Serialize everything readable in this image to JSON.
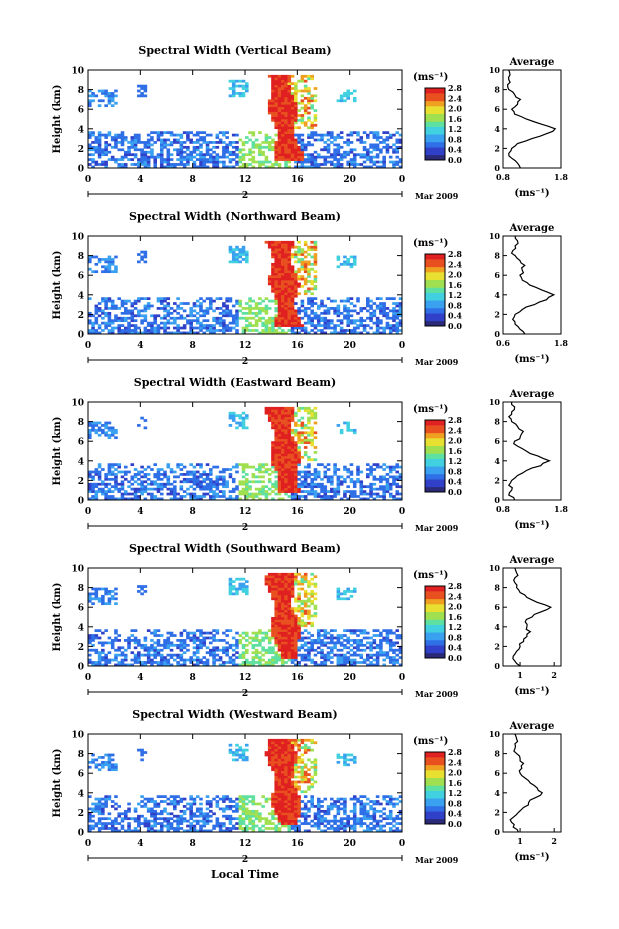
{
  "chart_data": [
    {
      "type": "heatmap",
      "title": "Spectral Width (Vertical Beam)",
      "ylabel": "Height (km)",
      "ylim": [
        0,
        10
      ],
      "yticks": [
        "0",
        "2",
        "4",
        "6",
        "8",
        "10"
      ],
      "xlim": [
        0,
        24
      ],
      "xticks": [
        "0",
        "4",
        "8",
        "12",
        "16",
        "20",
        "0"
      ],
      "date_mid_label": "2",
      "date_right_label": "Mar 2009",
      "colorbar": {
        "unit": "(ms⁻¹)",
        "ticks": [
          "0.0",
          "0.4",
          "0.8",
          "1.2",
          "1.6",
          "2.0",
          "2.4",
          "2.8"
        ],
        "range": [
          0,
          2.8
        ]
      },
      "avg": {
        "title": "Average",
        "xlabel": "(ms⁻¹)",
        "xlim": [
          0.8,
          1.8
        ],
        "xticks": [
          "0.8",
          "1.8"
        ],
        "x": [
          1.1,
          1.05,
          0.95,
          0.9,
          0.95,
          1.05,
          1.3,
          1.55,
          1.7,
          1.45,
          1.2,
          1.0,
          0.95,
          1.05,
          1.1,
          1.0,
          0.9,
          0.88,
          0.9,
          0.92,
          0.9
        ],
        "y": [
          0,
          0.5,
          1,
          1.5,
          2,
          2.5,
          3,
          3.5,
          4,
          4.5,
          5,
          5.5,
          6,
          6.5,
          7,
          7.5,
          8,
          8.5,
          9,
          9.5,
          10
        ]
      }
    },
    {
      "type": "heatmap",
      "title": "Spectral Width (Northward Beam)",
      "ylabel": "Height (km)",
      "ylim": [
        0,
        10
      ],
      "yticks": [
        "0",
        "2",
        "4",
        "6",
        "8",
        "10"
      ],
      "xlim": [
        0,
        24
      ],
      "xticks": [
        "0",
        "4",
        "8",
        "12",
        "16",
        "20",
        "0"
      ],
      "date_mid_label": "2",
      "date_right_label": "Mar 2009",
      "colorbar": {
        "unit": "(ms⁻¹)",
        "ticks": [
          "0.0",
          "0.4",
          "0.8",
          "1.2",
          "1.6",
          "2.0",
          "2.4",
          "2.8"
        ],
        "range": [
          0,
          2.8
        ]
      },
      "avg": {
        "title": "Average",
        "xlabel": "(ms⁻¹)",
        "xlim": [
          0.6,
          1.8
        ],
        "xticks": [
          "0.6",
          "1.8"
        ],
        "x": [
          1.05,
          0.95,
          0.85,
          0.8,
          0.85,
          1.0,
          1.25,
          1.5,
          1.65,
          1.4,
          1.15,
          1.0,
          0.95,
          1.0,
          1.05,
          0.95,
          0.85,
          0.8,
          0.85,
          0.9,
          0.85
        ],
        "y": [
          0,
          0.5,
          1,
          1.5,
          2,
          2.5,
          3,
          3.5,
          4,
          4.5,
          5,
          5.5,
          6,
          6.5,
          7,
          7.5,
          8,
          8.5,
          9,
          9.5,
          10
        ]
      }
    },
    {
      "type": "heatmap",
      "title": "Spectral Width (Eastward Beam)",
      "ylabel": "Height (km)",
      "ylim": [
        0,
        10
      ],
      "yticks": [
        "0",
        "2",
        "4",
        "6",
        "8",
        "10"
      ],
      "xlim": [
        0,
        24
      ],
      "xticks": [
        "0",
        "4",
        "8",
        "12",
        "16",
        "20",
        "0"
      ],
      "date_mid_label": "2",
      "date_right_label": "Mar 2009",
      "colorbar": {
        "unit": "(ms⁻¹)",
        "ticks": [
          "0.0",
          "0.4",
          "0.8",
          "1.2",
          "1.6",
          "2.0",
          "2.4",
          "2.8"
        ],
        "range": [
          0,
          2.8
        ]
      },
      "avg": {
        "title": "Average",
        "xlabel": "(ms⁻¹)",
        "xlim": [
          0.8,
          1.8
        ],
        "xticks": [
          "0.8",
          "1.8"
        ],
        "x": [
          1.0,
          0.9,
          0.95,
          0.9,
          0.95,
          1.05,
          1.2,
          1.45,
          1.6,
          1.4,
          1.2,
          1.05,
          1.0,
          1.1,
          1.15,
          1.05,
          0.95,
          0.9,
          0.95,
          1.0,
          0.95
        ],
        "y": [
          0,
          0.5,
          1,
          1.5,
          2,
          2.5,
          3,
          3.5,
          4,
          4.5,
          5,
          5.5,
          6,
          6.5,
          7,
          7.5,
          8,
          8.5,
          9,
          9.5,
          10
        ]
      }
    },
    {
      "type": "heatmap",
      "title": "Spectral Width (Southward Beam)",
      "ylabel": "Height (km)",
      "ylim": [
        0,
        10
      ],
      "yticks": [
        "0",
        "2",
        "4",
        "6",
        "8",
        "10"
      ],
      "xlim": [
        0,
        24
      ],
      "xticks": [
        "0",
        "4",
        "8",
        "12",
        "16",
        "20",
        "0"
      ],
      "date_mid_label": "2",
      "date_right_label": "Mar 2009",
      "colorbar": {
        "unit": "(ms⁻¹)",
        "ticks": [
          "0.0",
          "0.4",
          "0.8",
          "1.2",
          "1.6",
          "2.0",
          "2.4",
          "2.8"
        ],
        "range": [
          0,
          2.8
        ]
      },
      "avg": {
        "title": "Average",
        "xlabel": "(ms⁻¹)",
        "xlim": [
          0.5,
          2.2
        ],
        "xticks": [
          "1",
          "2"
        ],
        "x": [
          1.0,
          0.85,
          0.8,
          0.9,
          1.0,
          1.1,
          1.2,
          1.3,
          1.2,
          1.15,
          1.35,
          1.6,
          1.9,
          1.5,
          1.2,
          1.0,
          0.9,
          0.85,
          0.85,
          0.9,
          0.85
        ],
        "y": [
          0,
          0.5,
          1,
          1.5,
          2,
          2.5,
          3,
          3.5,
          4,
          4.5,
          5,
          5.5,
          6,
          6.5,
          7,
          7.5,
          8,
          8.5,
          9,
          9.5,
          10
        ]
      }
    },
    {
      "type": "heatmap",
      "title": "Spectral Width (Westward Beam)",
      "ylabel": "Height (km)",
      "ylim": [
        0,
        10
      ],
      "yticks": [
        "0",
        "2",
        "4",
        "6",
        "8",
        "10"
      ],
      "xlim": [
        0,
        24
      ],
      "xticks": [
        "0",
        "4",
        "8",
        "12",
        "16",
        "20",
        "0"
      ],
      "date_mid_label": "2",
      "date_right_label": "Mar 2009",
      "colorbar": {
        "unit": "(ms⁻¹)",
        "ticks": [
          "0.0",
          "0.4",
          "0.8",
          "1.2",
          "1.6",
          "2.0",
          "2.4",
          "2.8"
        ],
        "range": [
          0,
          2.8
        ]
      },
      "avg": {
        "title": "Average",
        "xlabel": "(ms⁻¹)",
        "xlim": [
          0.5,
          2.2
        ],
        "xticks": [
          "1",
          "2"
        ],
        "x": [
          0.95,
          0.8,
          0.75,
          0.8,
          0.95,
          1.1,
          1.25,
          1.45,
          1.65,
          1.5,
          1.3,
          1.15,
          1.0,
          1.05,
          1.1,
          1.0,
          0.9,
          0.85,
          0.85,
          0.9,
          0.85
        ],
        "y": [
          0,
          0.5,
          1,
          1.5,
          2,
          2.5,
          3,
          3.5,
          4,
          4.5,
          5,
          5.5,
          6,
          6.5,
          7,
          7.5,
          8,
          8.5,
          9,
          9.5,
          10
        ]
      }
    }
  ],
  "xlabel": "Local Time",
  "colors": {
    "colormap": [
      "#2a2a78",
      "#3040c8",
      "#2e6ee6",
      "#3aa0f0",
      "#40d0e0",
      "#5ee0a0",
      "#a0e050",
      "#e8e030",
      "#f0a020",
      "#e85020",
      "#e02020"
    ]
  }
}
